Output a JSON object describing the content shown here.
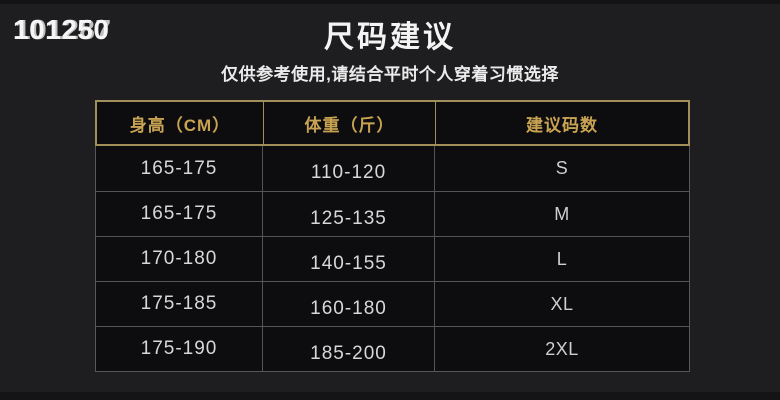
{
  "page": {
    "watermark": {
      "text": "101250",
      "ghost_text": "101287"
    },
    "title": "尺码建议",
    "subtitle": "仅供参考使用,请结合平时个人穿着习惯选择"
  },
  "chart_data": {
    "type": "table",
    "title": "尺码建议",
    "subtitle": "仅供参考使用,请结合平时个人穿着习惯选择",
    "columns": [
      "身高（CM）",
      "体重（斤）",
      "建议码数"
    ],
    "rows": [
      {
        "height": "165-175",
        "weight": "110-120",
        "size": "S"
      },
      {
        "height": "165-175",
        "weight": "125-135",
        "size": "M"
      },
      {
        "height": "170-180",
        "weight": "140-155",
        "size": "L"
      },
      {
        "height": "175-185",
        "weight": "160-180",
        "size": "XL"
      },
      {
        "height": "175-190",
        "weight": "185-200",
        "size": "2XL"
      }
    ]
  },
  "colors": {
    "background": "#1e1e20",
    "table_background": "#0d0d0f",
    "gold_border": "#a28e58",
    "header_text_gold": "#c8a452",
    "body_text": "#d8d8d8",
    "gray_divider": "#545456",
    "title_text": "#f4f4f4"
  }
}
